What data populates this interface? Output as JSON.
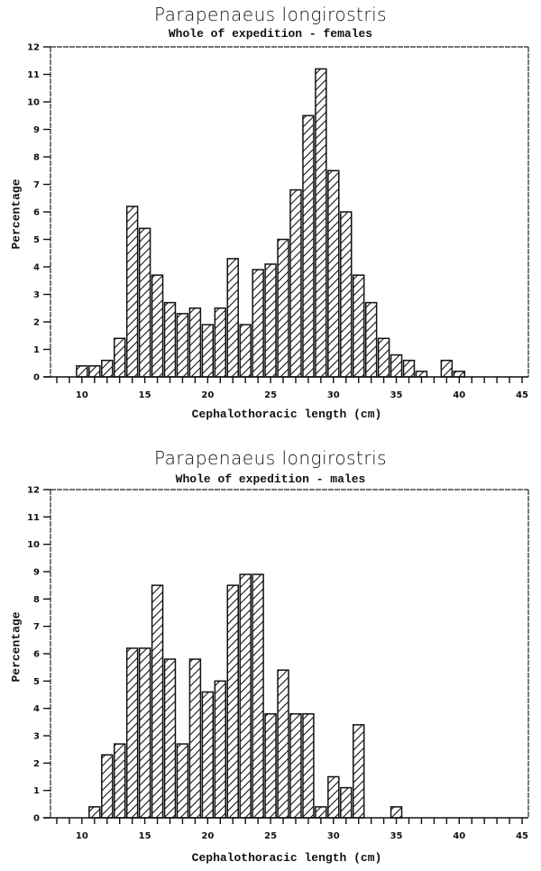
{
  "chart_data": [
    {
      "type": "bar",
      "title": "Parapenaeus longirostris",
      "subtitle": "Whole of expedition - females",
      "xlabel": "Cephalothoracic length (cm)",
      "ylabel": "Percentage",
      "ylim": [
        0,
        12
      ],
      "xlim": [
        7.5,
        45.5
      ],
      "yticks": [
        0,
        1,
        2,
        3,
        4,
        5,
        6,
        7,
        8,
        9,
        10,
        11,
        12
      ],
      "xticks_labeled": [
        10,
        15,
        20,
        25,
        30,
        35,
        40,
        45
      ],
      "grid": false,
      "pattern": "diagonal-hatch",
      "categories": [
        10,
        11,
        12,
        13,
        14,
        15,
        16,
        17,
        18,
        19,
        20,
        21,
        22,
        23,
        24,
        25,
        26,
        27,
        28,
        29,
        30,
        31,
        32,
        33,
        34,
        35,
        36,
        37,
        38,
        39,
        40
      ],
      "values": [
        0.4,
        0.4,
        0.6,
        1.4,
        6.2,
        5.4,
        3.7,
        2.7,
        2.3,
        2.5,
        1.9,
        2.5,
        4.3,
        1.9,
        3.9,
        4.1,
        5.0,
        6.8,
        9.5,
        11.2,
        7.5,
        6.0,
        3.7,
        2.7,
        1.4,
        0.8,
        0.6,
        0.2,
        0,
        0.6,
        0.2
      ]
    },
    {
      "type": "bar",
      "title": "Parapenaeus longirostris",
      "subtitle": "Whole of expedition - males",
      "xlabel": "Cephalothoracic length (cm)",
      "ylabel": "Percentage",
      "ylim": [
        0,
        12
      ],
      "xlim": [
        7.5,
        45.5
      ],
      "yticks": [
        0,
        1,
        2,
        3,
        4,
        5,
        6,
        7,
        8,
        9,
        10,
        11,
        12
      ],
      "xticks_labeled": [
        10,
        15,
        20,
        25,
        30,
        35,
        40,
        45
      ],
      "grid": false,
      "pattern": "diagonal-hatch",
      "categories": [
        11,
        12,
        13,
        14,
        15,
        16,
        17,
        18,
        19,
        20,
        21,
        22,
        23,
        24,
        25,
        26,
        27,
        28,
        29,
        30,
        31,
        32,
        33,
        34,
        35
      ],
      "values": [
        0.4,
        2.3,
        2.7,
        6.2,
        6.2,
        8.5,
        5.8,
        2.7,
        5.8,
        4.6,
        5.0,
        8.5,
        8.9,
        8.9,
        3.8,
        5.4,
        3.8,
        3.8,
        0.4,
        1.5,
        1.1,
        3.4,
        0,
        0,
        0.4
      ]
    }
  ],
  "charts": [
    {
      "title": "Parapenaeus longirostris",
      "subtitle": "Whole of expedition - females",
      "xlabel": "Cephalothoracic length (cm)",
      "ylabel": "Percentage"
    },
    {
      "title": "Parapenaeus longirostris",
      "subtitle": "Whole of expedition - males",
      "xlabel": "Cephalothoracic length (cm)",
      "ylabel": "Percentage"
    }
  ]
}
